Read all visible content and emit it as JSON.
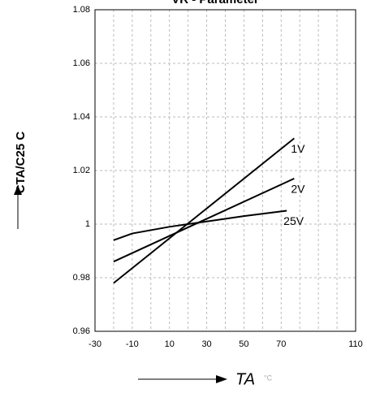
{
  "chart_data": {
    "type": "line",
    "title": "VR - Parameter",
    "y_label": "CTA/C25 C",
    "x_label": "TA",
    "x_unit": "°C",
    "xlim": [
      -30,
      110
    ],
    "xticks": [
      -30,
      -10,
      10,
      30,
      50,
      70,
      110
    ],
    "xminor": [
      -20,
      0,
      20,
      40,
      60,
      80,
      90,
      100
    ],
    "ylim": [
      0.96,
      1.08
    ],
    "yticks": [
      0.96,
      0.98,
      1,
      1.02,
      1.04,
      1.06,
      1.08
    ],
    "grid": true,
    "series": [
      {
        "name": "1V",
        "color": "#000000",
        "x": [
          -20,
          77
        ],
        "values": [
          0.978,
          1.032
        ]
      },
      {
        "name": "2V",
        "color": "#000000",
        "x": [
          -20,
          77
        ],
        "values": [
          0.986,
          1.017
        ]
      },
      {
        "name": "25V",
        "color": "#000000",
        "x": [
          -20,
          -10,
          10,
          20,
          30,
          50,
          73
        ],
        "values": [
          0.994,
          0.9965,
          0.999,
          1.0,
          1.001,
          1.003,
          1.005
        ]
      }
    ]
  }
}
